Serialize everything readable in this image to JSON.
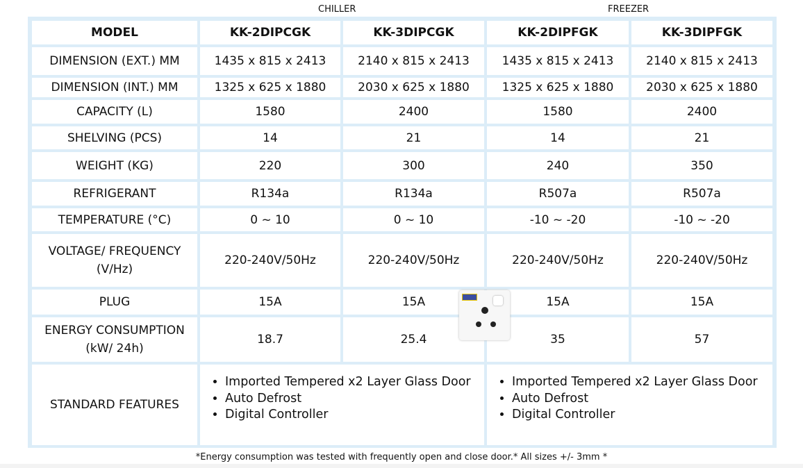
{
  "groups": {
    "chiller": "CHILLER",
    "freezer": "FREEZER"
  },
  "header": [
    "MODEL",
    "KK-2DIPCGK",
    "KK-3DIPCGK",
    "KK-2DIPFGK",
    "KK-3DIPFGK"
  ],
  "rows": [
    [
      "DIMENSION (EXT.) MM",
      "1435 x 815 x 2413",
      "2140 x 815 x 2413",
      "1435 x 815 x 2413",
      "2140 x 815 x 2413"
    ],
    [
      "DIMENSION (INT.) MM",
      "1325 x 625 x 1880",
      "2030 x 625 x 1880",
      "1325 x 625 x 1880",
      "2030 x 625 x 1880"
    ],
    [
      "CAPACITY (L)",
      "1580",
      "2400",
      "1580",
      "2400"
    ],
    [
      "SHELVING (PCS)",
      "14",
      "21",
      "14",
      "21"
    ],
    [
      "WEIGHT (KG)",
      "220",
      "300",
      "240",
      "350"
    ],
    [
      "REFRIGERANT",
      "R134a",
      "R134a",
      "R507a",
      "R507a"
    ],
    [
      "TEMPERATURE (°C)",
      "0 ~ 10",
      "0 ~ 10",
      "-10 ~ -20",
      "-10 ~ -20"
    ],
    [
      "VOLTAGE/ FREQUENCY (V/Hz)",
      "220-240V/50Hz",
      "220-240V/50Hz",
      "220-240V/50Hz",
      "220-240V/50Hz"
    ],
    [
      "PLUG",
      "15A",
      "15A",
      "15A",
      "15A"
    ],
    [
      "ENERGY CONSUMPTION (kW/ 24h)",
      "18.7",
      "25.4",
      "35",
      "57"
    ]
  ],
  "features": {
    "label": "STANDARD FEATURES",
    "chiller": [
      "Imported Tempered x2 Layer Glass Door",
      "Auto Defrost",
      "Digital Controller"
    ],
    "freezer": [
      "Imported Tempered x2 Layer Glass Door",
      "Auto Defrost",
      "Digital Controller"
    ]
  },
  "footnote": "*Energy consumption was tested with frequently open and close door.* All sizes +/- 3mm *"
}
